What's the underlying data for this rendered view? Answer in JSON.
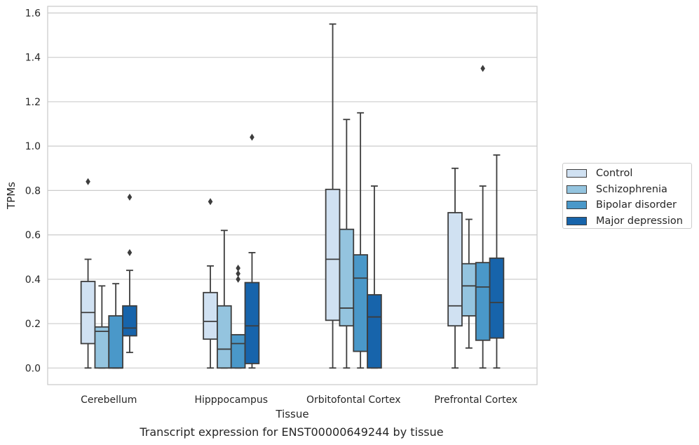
{
  "chart_data": {
    "type": "boxplot",
    "xlabel": "Tissue",
    "ylabel": "TPMs",
    "caption": "Transcript expression for ENST00000649244 by tissue",
    "ylim": [
      -0.075,
      1.63
    ],
    "yticks": [
      0.0,
      0.2,
      0.4,
      0.6,
      0.8,
      1.0,
      1.2,
      1.4,
      1.6
    ],
    "ytick_labels": [
      "0.0",
      "0.2",
      "0.4",
      "0.6",
      "0.8",
      "1.0",
      "1.2",
      "1.4",
      "1.6"
    ],
    "grid": true,
    "legend_position": "right",
    "categories": [
      "Cerebellum",
      "Hipppocampus",
      "Orbitofontal Cortex",
      "Prefrontal Cortex"
    ],
    "series": [
      {
        "name": "Control",
        "color": "#d0e1f2",
        "boxes": [
          {
            "whislo": 0.0,
            "q1": 0.11,
            "med": 0.25,
            "q3": 0.39,
            "whishi": 0.49,
            "fliers": [
              0.84
            ]
          },
          {
            "whislo": 0.0,
            "q1": 0.13,
            "med": 0.21,
            "q3": 0.34,
            "whishi": 0.46,
            "fliers": [
              0.75
            ]
          },
          {
            "whislo": 0.0,
            "q1": 0.215,
            "med": 0.49,
            "q3": 0.805,
            "whishi": 1.55,
            "fliers": []
          },
          {
            "whislo": 0.0,
            "q1": 0.19,
            "med": 0.28,
            "q3": 0.7,
            "whishi": 0.9,
            "fliers": []
          }
        ]
      },
      {
        "name": "Schizophrenia",
        "color": "#94c4df",
        "boxes": [
          {
            "whislo": 0.0,
            "q1": 0.0,
            "med": 0.165,
            "q3": 0.185,
            "whishi": 0.37,
            "fliers": []
          },
          {
            "whislo": 0.0,
            "q1": 0.0,
            "med": 0.085,
            "q3": 0.28,
            "whishi": 0.62,
            "fliers": []
          },
          {
            "whislo": 0.0,
            "q1": 0.19,
            "med": 0.27,
            "q3": 0.625,
            "whishi": 1.12,
            "fliers": []
          },
          {
            "whislo": 0.09,
            "q1": 0.235,
            "med": 0.37,
            "q3": 0.47,
            "whishi": 0.67,
            "fliers": []
          }
        ]
      },
      {
        "name": "Bipolar disorder",
        "color": "#4a98c9",
        "boxes": [
          {
            "whislo": 0.0,
            "q1": 0.0,
            "med": 0.0,
            "q3": 0.235,
            "whishi": 0.38,
            "fliers": []
          },
          {
            "whislo": 0.0,
            "q1": 0.0,
            "med": 0.11,
            "q3": 0.15,
            "whishi": 0.15,
            "fliers": [
              0.4,
              0.425,
              0.45
            ]
          },
          {
            "whislo": 0.0,
            "q1": 0.075,
            "med": 0.405,
            "q3": 0.51,
            "whishi": 1.15,
            "fliers": []
          },
          {
            "whislo": 0.0,
            "q1": 0.125,
            "med": 0.365,
            "q3": 0.475,
            "whishi": 0.82,
            "fliers": [
              1.35
            ]
          }
        ]
      },
      {
        "name": "Major depression",
        "color": "#1764ab",
        "boxes": [
          {
            "whislo": 0.07,
            "q1": 0.145,
            "med": 0.18,
            "q3": 0.28,
            "whishi": 0.44,
            "fliers": [
              0.52,
              0.77
            ]
          },
          {
            "whislo": 0.0,
            "q1": 0.02,
            "med": 0.19,
            "q3": 0.385,
            "whishi": 0.52,
            "fliers": [
              1.04
            ]
          },
          {
            "whislo": 0.0,
            "q1": 0.0,
            "med": 0.23,
            "q3": 0.33,
            "whishi": 0.82,
            "fliers": []
          },
          {
            "whislo": 0.0,
            "q1": 0.135,
            "med": 0.295,
            "q3": 0.495,
            "whishi": 0.96,
            "fliers": []
          }
        ]
      }
    ]
  }
}
